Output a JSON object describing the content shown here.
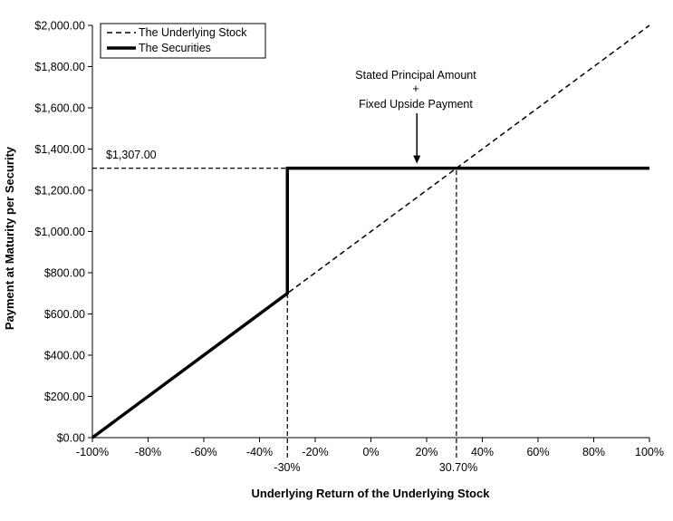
{
  "chart_data": {
    "type": "line",
    "xlabel": "Underlying Return of the Underlying Stock",
    "ylabel": "Payment at Maturity per Security",
    "xlim": [
      -100,
      100
    ],
    "ylim": [
      0,
      2000
    ],
    "x_ticks": [
      -100,
      -80,
      -60,
      -40,
      -20,
      0,
      20,
      40,
      60,
      80,
      100
    ],
    "x_tick_labels": [
      "-100%",
      "-80%",
      "-60%",
      "-40%",
      "-20%",
      "0%",
      "20%",
      "40%",
      "60%",
      "80%",
      "100%"
    ],
    "y_ticks": [
      0,
      200,
      400,
      600,
      800,
      1000,
      1200,
      1400,
      1600,
      1800,
      2000
    ],
    "y_tick_labels": [
      "$0.00",
      "$200.00",
      "$400.00",
      "$600.00",
      "$800.00",
      "$1,000.00",
      "$1,200.00",
      "$1,400.00",
      "$1,600.00",
      "$1,800.00",
      "$2,000.00"
    ],
    "grid": false,
    "legend": {
      "position": "top-left"
    },
    "series": [
      {
        "name": "The Underlying Stock",
        "style": "dashed",
        "x": [
          -100,
          100
        ],
        "y": [
          0,
          2000
        ]
      },
      {
        "name": "The Securities",
        "style": "solid-thick",
        "x": [
          -100,
          -30,
          -30,
          100
        ],
        "y": [
          0,
          700,
          1307,
          1307
        ]
      }
    ],
    "reference_lines": [
      {
        "from": [
          -100,
          1307
        ],
        "to": [
          -30,
          1307
        ]
      },
      {
        "from": [
          -30,
          0
        ],
        "to": [
          -30,
          700
        ]
      },
      {
        "from": [
          30.7,
          0
        ],
        "to": [
          30.7,
          1307
        ]
      }
    ],
    "annotations": {
      "level_label": {
        "text": "$1,307.00",
        "value": 1307
      },
      "x_marker_left": {
        "text": "-30%",
        "value": -30
      },
      "x_marker_right": {
        "text": "30.70%",
        "value": 30.7
      },
      "callout": {
        "lines": [
          "Stated Principal Amount",
          "+",
          "Fixed Upside Payment"
        ],
        "x": 16.5,
        "arrow_tip_y": 1307
      }
    }
  }
}
